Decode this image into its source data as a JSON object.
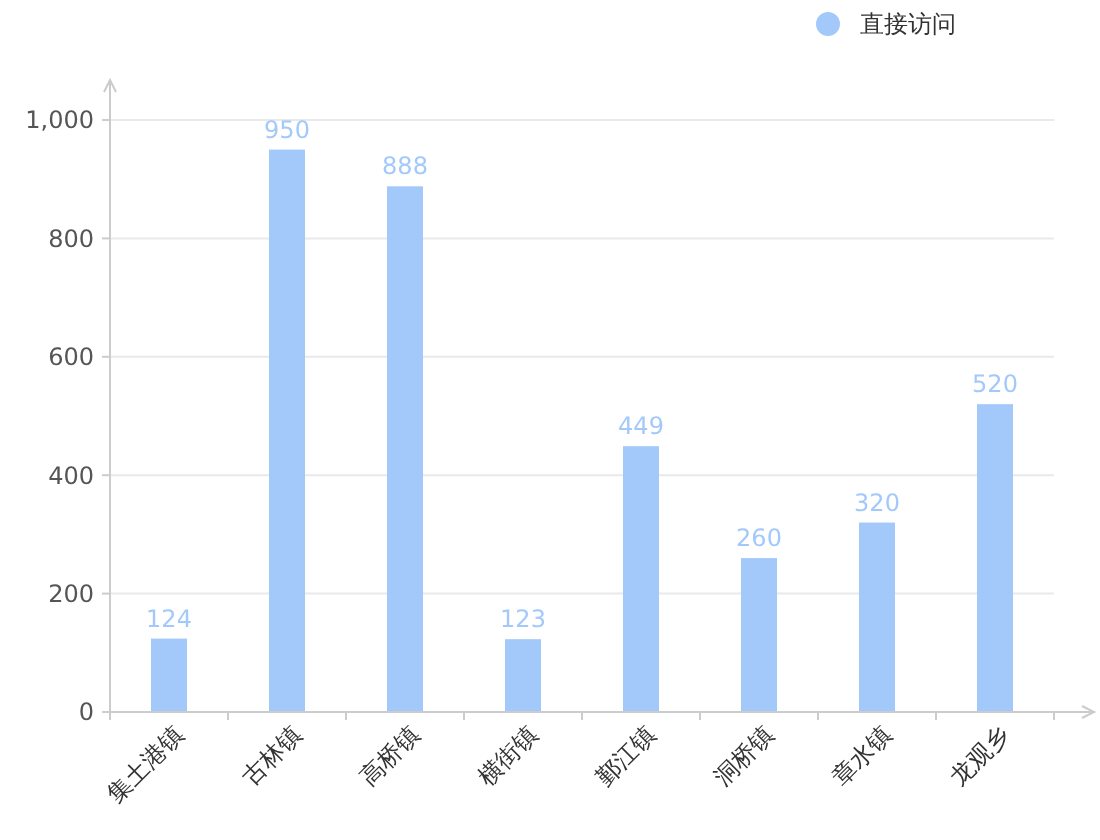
{
  "chart_data": {
    "type": "bar",
    "categories": [
      "集土港镇",
      "古林镇",
      "高桥镇",
      "横街镇",
      "鄞江镇",
      "洞桥镇",
      "章水镇",
      "龙观乡"
    ],
    "series": [
      {
        "name": "直接访问",
        "color": "#a3c9fb",
        "values": [
          124,
          950,
          888,
          123,
          449,
          260,
          320,
          520
        ]
      }
    ],
    "ylim": [
      0,
      1000
    ],
    "yticks": [
      0,
      200,
      400,
      600,
      800,
      {
        "value": 1000,
        "label": "1,000"
      }
    ],
    "grid": "y",
    "legend": "top right",
    "data_labels": true
  }
}
